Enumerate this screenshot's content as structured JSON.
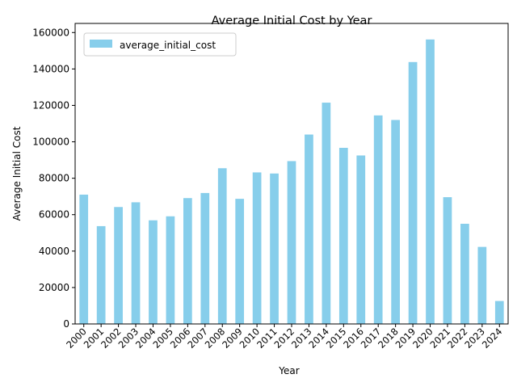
{
  "chart_data": {
    "type": "bar",
    "title": "Average Initial Cost by Year",
    "xlabel": "Year",
    "ylabel": "Average Initial Cost",
    "ylim": [
      0,
      165000
    ],
    "yticks": [
      0,
      20000,
      40000,
      60000,
      80000,
      100000,
      120000,
      140000,
      160000
    ],
    "grid": false,
    "legend_position": "top-left",
    "categories": [
      "2000",
      "2001",
      "2002",
      "2003",
      "2004",
      "2005",
      "2006",
      "2007",
      "2008",
      "2009",
      "2010",
      "2011",
      "2012",
      "2013",
      "2014",
      "2015",
      "2016",
      "2017",
      "2018",
      "2019",
      "2020",
      "2021",
      "2022",
      "2023",
      "2024"
    ],
    "series": [
      {
        "name": "average_initial_cost",
        "color": "#87ceeb",
        "values": [
          71000,
          53700,
          64200,
          66800,
          56900,
          59100,
          69100,
          71900,
          85500,
          68700,
          83200,
          82600,
          89400,
          104000,
          121500,
          96700,
          92500,
          114500,
          112000,
          143800,
          156200,
          69600,
          55000,
          42300,
          12600
        ]
      }
    ]
  }
}
